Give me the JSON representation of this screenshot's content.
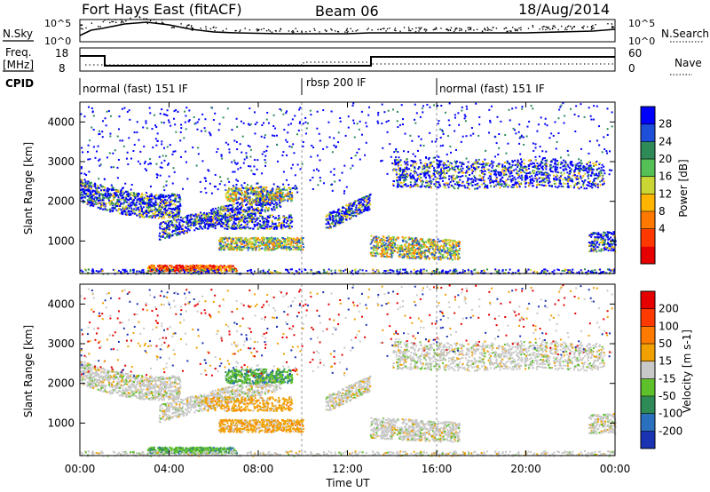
{
  "header": {
    "title": "Fort Hays East (fitACF)",
    "beam": "Beam 06",
    "date": "18/Aug/2014"
  },
  "panels": {
    "nsky": {
      "left_label": "N.Sky",
      "right_label": "N.Search",
      "tick_top": "10^5",
      "tick_bottom": "10^0"
    },
    "freq": {
      "left_label_1": "Freq.",
      "left_label_2": "[MHz]",
      "right_label": "Nave",
      "left_ticks": [
        "18",
        "8"
      ],
      "right_ticks": [
        "60",
        "0"
      ]
    },
    "cpid": {
      "label": "CPID",
      "segments": [
        "normal (fast) 151 IF",
        "rbsp 200 IF",
        "normal (fast) 151 IF"
      ]
    }
  },
  "chart_data": [
    {
      "type": "heatmap",
      "title": "",
      "ylabel": "Slant Range [km]",
      "xlabel": "",
      "ylim": [
        180,
        4500
      ],
      "yticks": [
        "1000",
        "2000",
        "3000",
        "4000"
      ],
      "colorbar": {
        "label": "Power [dB]",
        "ticks": [
          "4",
          "8",
          "12",
          "16",
          "20",
          "24",
          "28"
        ],
        "colors": [
          "#0000ff",
          "#1e4fd8",
          "#2e8b57",
          "#55c055",
          "#c9d634",
          "#ffb400",
          "#ff7800",
          "#ff3800",
          "#e60000"
        ]
      }
    },
    {
      "type": "heatmap",
      "title": "",
      "ylabel": "Slant Range [km]",
      "xlabel": "Time UT",
      "ylim": [
        180,
        4500
      ],
      "yticks": [
        "1000",
        "2000",
        "3000",
        "4000"
      ],
      "xticks": [
        "00:00",
        "04:00",
        "08:00",
        "12:00",
        "16:00",
        "20:00",
        "00:00"
      ],
      "colorbar": {
        "label": "Velocity [m s-1]",
        "ticks": [
          "200",
          "100",
          "50",
          "15",
          "-15",
          "-50",
          "-100",
          "-200"
        ],
        "colors": [
          "#1a33b3",
          "#2b6fbf",
          "#2e8b57",
          "#5ec02a",
          "#c8c8c8",
          "#f0a000",
          "#ff7a00",
          "#ff3a00",
          "#e60000"
        ]
      }
    }
  ],
  "colors": {
    "grey": "#c9c9c0",
    "green": "#44b833",
    "blue": "#1e3fd0"
  }
}
